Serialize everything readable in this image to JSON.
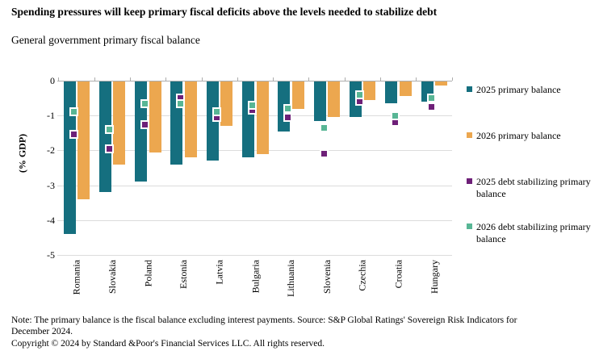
{
  "title": "Spending pressures will keep primary fiscal deficits above the levels needed to stabilize debt",
  "subtitle": "General government primary fiscal balance",
  "note": "Note: The primary balance is the fiscal balance excluding interest payments. Source: S&P Global Ratings' Sovereign Risk Indicators for December 2024.",
  "copyright": "Copyright © 2024 by Standard &Poor's Financial Services LLC. All rights reserved.",
  "colors": {
    "bar_2025": "#156f7f",
    "bar_2026": "#eca74f",
    "marker_2025_debt_stabilizing": "#6e2078",
    "marker_2026_debt_stabilizing": "#58b695",
    "gridline": "#dcdcdc",
    "axis": "#adadad",
    "text": "#000000"
  },
  "chart_data": {
    "type": "bar",
    "title": "Spending pressures will keep primary fiscal deficits above the levels needed to stabilize debt",
    "subtitle": "General government primary fiscal balance",
    "xlabel": "",
    "ylabel": "(% GDP)",
    "ylim": [
      -5,
      0
    ],
    "yticks": [
      0,
      -1,
      -2,
      -3,
      -4,
      -5
    ],
    "grid": true,
    "legend_position": "right",
    "categories": [
      "Romania",
      "Slovakia",
      "Poland",
      "Estonia",
      "Latvia",
      "Bulgaria",
      "Lithuania",
      "Slovenia",
      "Czechia",
      "Croatia",
      "Hungary"
    ],
    "series": [
      {
        "name": "2025 primary balance",
        "type": "bar",
        "color": "#156f7f",
        "values": [
          -4.4,
          -3.2,
          -2.9,
          -2.4,
          -2.3,
          -2.2,
          -1.45,
          -1.15,
          -1.05,
          -0.65,
          -0.6
        ]
      },
      {
        "name": "2026 primary balance",
        "type": "bar",
        "color": "#eca74f",
        "values": [
          -3.4,
          -2.4,
          -2.05,
          -2.2,
          -1.3,
          -2.1,
          -0.8,
          -1.05,
          -0.55,
          -0.45,
          -0.15
        ]
      },
      {
        "name": "2025 debt stabilizing primary balance",
        "type": "marker",
        "color": "#6e2078",
        "values": [
          -1.55,
          -1.95,
          -1.25,
          -0.5,
          -1.05,
          -0.85,
          -1.05,
          -2.1,
          -0.6,
          -1.2,
          -0.75
        ]
      },
      {
        "name": "2026 debt stabilizing primary balance",
        "type": "marker",
        "color": "#58b695",
        "values": [
          -0.9,
          -1.4,
          -0.65,
          -0.65,
          -0.9,
          -0.7,
          -0.8,
          -1.35,
          -0.4,
          -1.0,
          -0.5
        ]
      }
    ]
  }
}
